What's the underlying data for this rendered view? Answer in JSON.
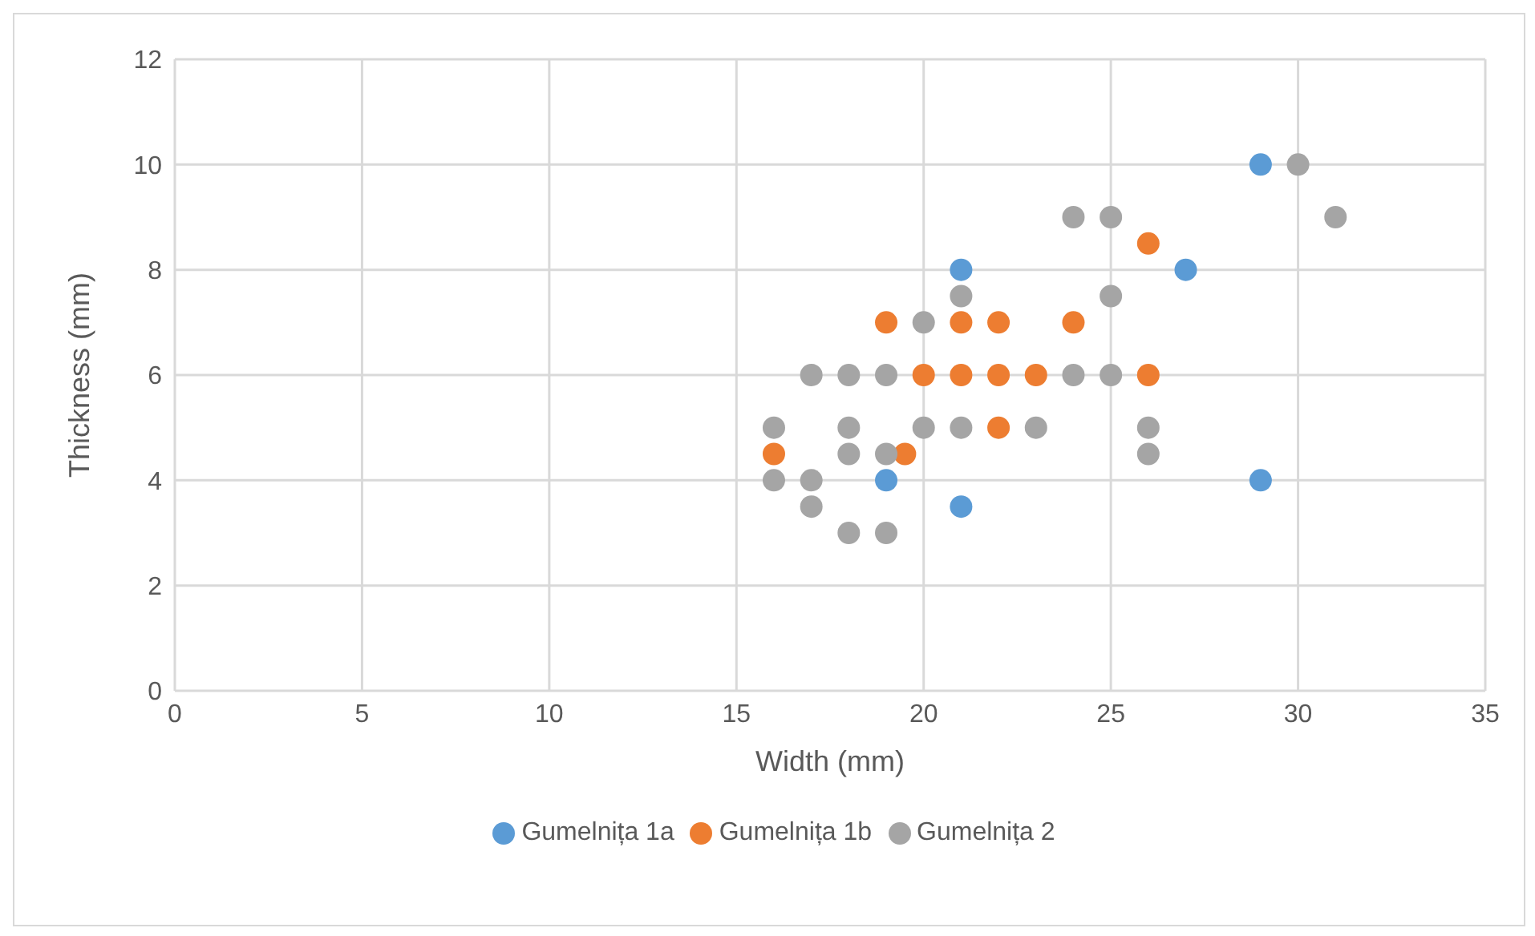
{
  "chart_data": {
    "type": "scatter",
    "xlabel": "Width (mm)",
    "ylabel": "Thickness (mm)",
    "xlim": [
      0,
      35
    ],
    "xticks": [
      0,
      5,
      10,
      15,
      20,
      25,
      30,
      35
    ],
    "ylim": [
      0,
      12
    ],
    "yticks": [
      0,
      2,
      4,
      6,
      8,
      10,
      12
    ],
    "grid": true,
    "legend": "bottom",
    "marker": "circle",
    "series": [
      {
        "name": "Gumelnița 1a",
        "color": "#5b9bd5",
        "x": [
          19,
          21,
          21,
          27,
          29,
          29
        ],
        "values": [
          4,
          8,
          3.5,
          8,
          10,
          4
        ]
      },
      {
        "name": "Gumelnița 1b",
        "color": "#ed7d31",
        "x": [
          16,
          19,
          19.5,
          20,
          21,
          21,
          22,
          22,
          22,
          23,
          24,
          26,
          26
        ],
        "values": [
          4.5,
          7,
          4.5,
          6,
          7,
          6,
          7,
          6,
          5,
          6,
          7,
          8.5,
          6
        ]
      },
      {
        "name": "Gumelnița 2",
        "color": "#a5a5a5",
        "x": [
          16,
          16,
          17,
          17,
          17,
          18,
          18,
          18,
          18,
          19,
          19,
          19,
          20,
          20,
          21,
          21,
          23,
          24,
          25,
          24,
          25,
          25,
          26,
          26,
          30,
          31
        ],
        "values": [
          5,
          4,
          6,
          4,
          3.5,
          6,
          5,
          4.5,
          3,
          6,
          4.5,
          3,
          7,
          5,
          7.5,
          5,
          5,
          9,
          9,
          6,
          7.5,
          6,
          5,
          4.5,
          10,
          9
        ]
      }
    ]
  }
}
